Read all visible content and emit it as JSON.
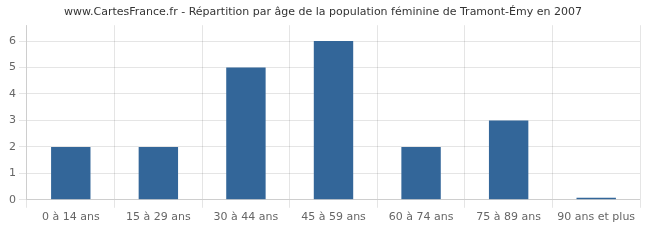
{
  "chart_data": {
    "type": "bar",
    "title": "www.CartesFrance.fr - Répartition par âge de la population féminine de Tramont-Émy en 2007",
    "categories": [
      "0 à 14 ans",
      "15 à 29 ans",
      "30 à 44 ans",
      "45 à 59 ans",
      "60 à 74 ans",
      "75 à 89 ans",
      "90 ans et plus"
    ],
    "values": [
      2,
      2,
      5,
      6,
      2,
      3,
      0.08
    ],
    "color": "#336699",
    "ylim": [
      0,
      6.6
    ],
    "yticks": [
      0,
      1,
      2,
      3,
      4,
      5,
      6
    ],
    "grid": true
  }
}
